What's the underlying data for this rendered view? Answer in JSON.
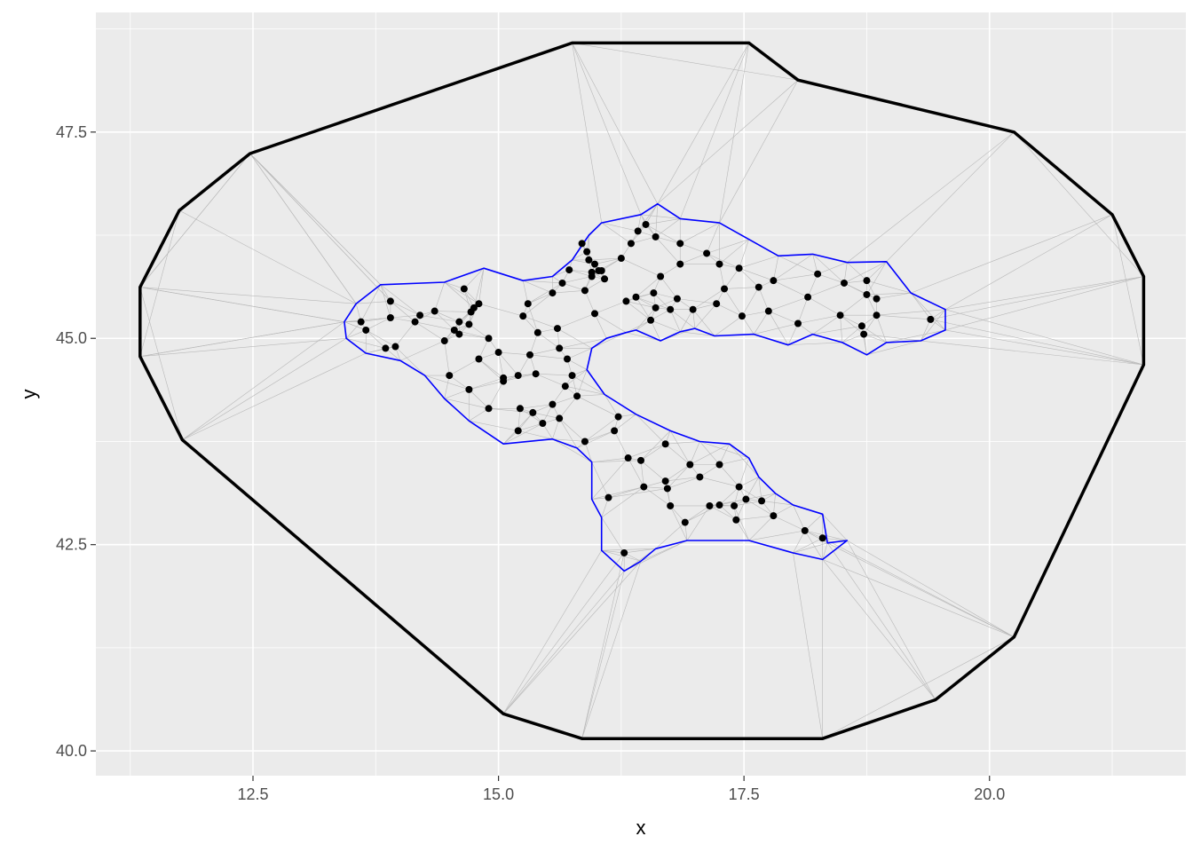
{
  "chart_data": {
    "type": "scatter",
    "title": "",
    "xlabel": "x",
    "ylabel": "y",
    "xlim": [
      10.9,
      22.0
    ],
    "ylim": [
      39.7,
      48.95
    ],
    "x_ticks": [
      12.5,
      15.0,
      17.5,
      20.0
    ],
    "x_tick_labels": [
      "12.5",
      "15.0",
      "17.5",
      "20.0"
    ],
    "y_ticks": [
      40.0,
      42.5,
      45.0,
      47.5
    ],
    "y_tick_labels": [
      "40.0",
      "42.5",
      "45.0",
      "47.5"
    ],
    "grid": true,
    "legend": "none",
    "colors": {
      "panel": "#ebebeb",
      "grid": "#ffffff",
      "mesh": "#b8b8b8",
      "outer_boundary": "#000000",
      "inner_boundary": "#0000ff",
      "points": "#000000"
    },
    "points": [
      [
        13.6,
        45.2
      ],
      [
        13.65,
        45.1
      ],
      [
        13.9,
        45.45
      ],
      [
        13.9,
        45.25
      ],
      [
        13.85,
        44.88
      ],
      [
        13.95,
        44.9
      ],
      [
        14.15,
        45.2
      ],
      [
        14.2,
        45.28
      ],
      [
        14.35,
        45.33
      ],
      [
        14.45,
        44.97
      ],
      [
        14.5,
        44.55
      ],
      [
        14.55,
        45.1
      ],
      [
        14.6,
        45.05
      ],
      [
        14.6,
        45.2
      ],
      [
        14.65,
        45.6
      ],
      [
        14.7,
        45.17
      ],
      [
        14.72,
        45.32
      ],
      [
        14.75,
        45.37
      ],
      [
        14.7,
        44.38
      ],
      [
        14.8,
        45.42
      ],
      [
        14.8,
        44.75
      ],
      [
        14.9,
        45.0
      ],
      [
        14.9,
        44.15
      ],
      [
        15.0,
        44.83
      ],
      [
        15.05,
        44.52
      ],
      [
        15.05,
        44.48
      ],
      [
        15.2,
        44.55
      ],
      [
        15.2,
        43.88
      ],
      [
        15.22,
        44.15
      ],
      [
        15.25,
        45.27
      ],
      [
        15.3,
        45.42
      ],
      [
        15.32,
        44.8
      ],
      [
        15.35,
        44.1
      ],
      [
        15.38,
        44.57
      ],
      [
        15.4,
        45.07
      ],
      [
        15.45,
        43.97
      ],
      [
        15.55,
        44.2
      ],
      [
        15.55,
        45.55
      ],
      [
        15.6,
        45.12
      ],
      [
        15.62,
        44.03
      ],
      [
        15.62,
        44.88
      ],
      [
        15.65,
        45.67
      ],
      [
        15.68,
        44.42
      ],
      [
        15.7,
        44.75
      ],
      [
        15.72,
        45.83
      ],
      [
        15.75,
        44.55
      ],
      [
        15.8,
        44.3
      ],
      [
        15.85,
        46.15
      ],
      [
        15.88,
        45.58
      ],
      [
        15.9,
        46.05
      ],
      [
        15.92,
        45.95
      ],
      [
        15.95,
        45.8
      ],
      [
        15.95,
        45.75
      ],
      [
        15.98,
        45.9
      ],
      [
        15.88,
        43.75
      ],
      [
        15.98,
        45.3
      ],
      [
        16.02,
        45.82
      ],
      [
        16.05,
        45.82
      ],
      [
        16.08,
        45.72
      ],
      [
        16.12,
        43.07
      ],
      [
        16.18,
        43.88
      ],
      [
        16.22,
        44.05
      ],
      [
        16.25,
        45.97
      ],
      [
        16.28,
        42.4
      ],
      [
        16.3,
        45.45
      ],
      [
        16.32,
        43.55
      ],
      [
        16.35,
        46.15
      ],
      [
        16.4,
        45.5
      ],
      [
        16.42,
        46.3
      ],
      [
        16.45,
        43.52
      ],
      [
        16.48,
        43.2
      ],
      [
        16.5,
        46.38
      ],
      [
        16.55,
        45.22
      ],
      [
        16.58,
        45.55
      ],
      [
        16.6,
        45.37
      ],
      [
        16.6,
        46.23
      ],
      [
        16.65,
        45.75
      ],
      [
        16.7,
        43.27
      ],
      [
        16.7,
        43.72
      ],
      [
        16.72,
        43.18
      ],
      [
        16.75,
        42.97
      ],
      [
        16.75,
        45.35
      ],
      [
        16.82,
        45.48
      ],
      [
        16.85,
        46.15
      ],
      [
        16.85,
        45.9
      ],
      [
        16.9,
        42.77
      ],
      [
        16.95,
        43.47
      ],
      [
        16.98,
        45.35
      ],
      [
        17.05,
        43.32
      ],
      [
        17.12,
        46.03
      ],
      [
        17.15,
        42.97
      ],
      [
        17.22,
        45.42
      ],
      [
        17.25,
        42.98
      ],
      [
        17.25,
        45.9
      ],
      [
        17.25,
        43.47
      ],
      [
        17.3,
        45.6
      ],
      [
        17.4,
        42.97
      ],
      [
        17.42,
        42.8
      ],
      [
        17.45,
        43.2
      ],
      [
        17.45,
        45.85
      ],
      [
        17.48,
        45.27
      ],
      [
        17.52,
        43.05
      ],
      [
        17.65,
        45.62
      ],
      [
        17.68,
        43.03
      ],
      [
        17.75,
        45.33
      ],
      [
        17.8,
        42.85
      ],
      [
        17.8,
        45.7
      ],
      [
        18.05,
        45.18
      ],
      [
        18.12,
        42.67
      ],
      [
        18.15,
        45.5
      ],
      [
        18.25,
        45.78
      ],
      [
        18.3,
        42.58
      ],
      [
        18.48,
        45.28
      ],
      [
        18.52,
        45.67
      ],
      [
        18.7,
        45.15
      ],
      [
        18.72,
        45.05
      ],
      [
        18.75,
        45.7
      ],
      [
        18.75,
        45.53
      ],
      [
        18.85,
        45.48
      ],
      [
        18.85,
        45.28
      ],
      [
        19.4,
        45.23
      ]
    ],
    "outer_boundary": [
      [
        12.47,
        47.24
      ],
      [
        11.75,
        46.55
      ],
      [
        11.35,
        45.62
      ],
      [
        11.35,
        44.78
      ],
      [
        11.78,
        43.77
      ],
      [
        15.05,
        40.45
      ],
      [
        15.85,
        40.15
      ],
      [
        18.3,
        40.15
      ],
      [
        19.45,
        40.62
      ],
      [
        20.25,
        41.38
      ],
      [
        21.57,
        44.68
      ],
      [
        21.57,
        45.75
      ],
      [
        21.25,
        46.5
      ],
      [
        20.25,
        47.5
      ],
      [
        18.05,
        48.13
      ],
      [
        17.55,
        48.58
      ],
      [
        15.75,
        48.58
      ],
      [
        12.47,
        47.24
      ]
    ],
    "inner_boundary": [
      [
        13.43,
        45.2
      ],
      [
        13.55,
        45.42
      ],
      [
        13.8,
        45.65
      ],
      [
        14.45,
        45.68
      ],
      [
        14.85,
        45.85
      ],
      [
        15.25,
        45.7
      ],
      [
        15.55,
        45.75
      ],
      [
        15.75,
        45.95
      ],
      [
        15.92,
        46.25
      ],
      [
        16.05,
        46.4
      ],
      [
        16.45,
        46.5
      ],
      [
        16.62,
        46.63
      ],
      [
        16.85,
        46.45
      ],
      [
        17.25,
        46.4
      ],
      [
        17.55,
        46.2
      ],
      [
        17.85,
        46.0
      ],
      [
        18.2,
        46.02
      ],
      [
        18.55,
        45.92
      ],
      [
        18.95,
        45.93
      ],
      [
        19.2,
        45.55
      ],
      [
        19.55,
        45.35
      ],
      [
        19.55,
        45.1
      ],
      [
        19.3,
        44.97
      ],
      [
        18.95,
        44.95
      ],
      [
        18.75,
        44.8
      ],
      [
        18.5,
        44.95
      ],
      [
        18.2,
        45.05
      ],
      [
        17.95,
        44.92
      ],
      [
        17.6,
        45.05
      ],
      [
        17.2,
        45.03
      ],
      [
        17.0,
        45.12
      ],
      [
        16.85,
        45.08
      ],
      [
        16.65,
        44.97
      ],
      [
        16.4,
        45.1
      ],
      [
        16.3,
        45.07
      ],
      [
        16.1,
        45.0
      ],
      [
        15.95,
        44.88
      ],
      [
        15.9,
        44.62
      ],
      [
        16.08,
        44.32
      ],
      [
        16.4,
        44.08
      ],
      [
        16.75,
        43.88
      ],
      [
        17.05,
        43.75
      ],
      [
        17.35,
        43.72
      ],
      [
        17.55,
        43.55
      ],
      [
        17.65,
        43.32
      ],
      [
        17.82,
        43.12
      ],
      [
        18.0,
        42.98
      ],
      [
        18.3,
        42.87
      ],
      [
        18.35,
        42.52
      ],
      [
        18.55,
        42.55
      ],
      [
        18.3,
        42.32
      ],
      [
        18.0,
        42.4
      ],
      [
        17.55,
        42.55
      ],
      [
        16.92,
        42.55
      ],
      [
        16.6,
        42.45
      ],
      [
        16.45,
        42.3
      ],
      [
        16.28,
        42.18
      ],
      [
        16.05,
        42.43
      ],
      [
        16.05,
        42.83
      ],
      [
        15.95,
        43.05
      ],
      [
        15.95,
        43.5
      ],
      [
        15.8,
        43.67
      ],
      [
        15.55,
        43.78
      ],
      [
        15.05,
        43.72
      ],
      [
        14.7,
        44.0
      ],
      [
        14.45,
        44.27
      ],
      [
        14.25,
        44.55
      ],
      [
        14.0,
        44.73
      ],
      [
        13.65,
        44.82
      ],
      [
        13.45,
        45.0
      ],
      [
        13.43,
        45.2
      ]
    ]
  }
}
